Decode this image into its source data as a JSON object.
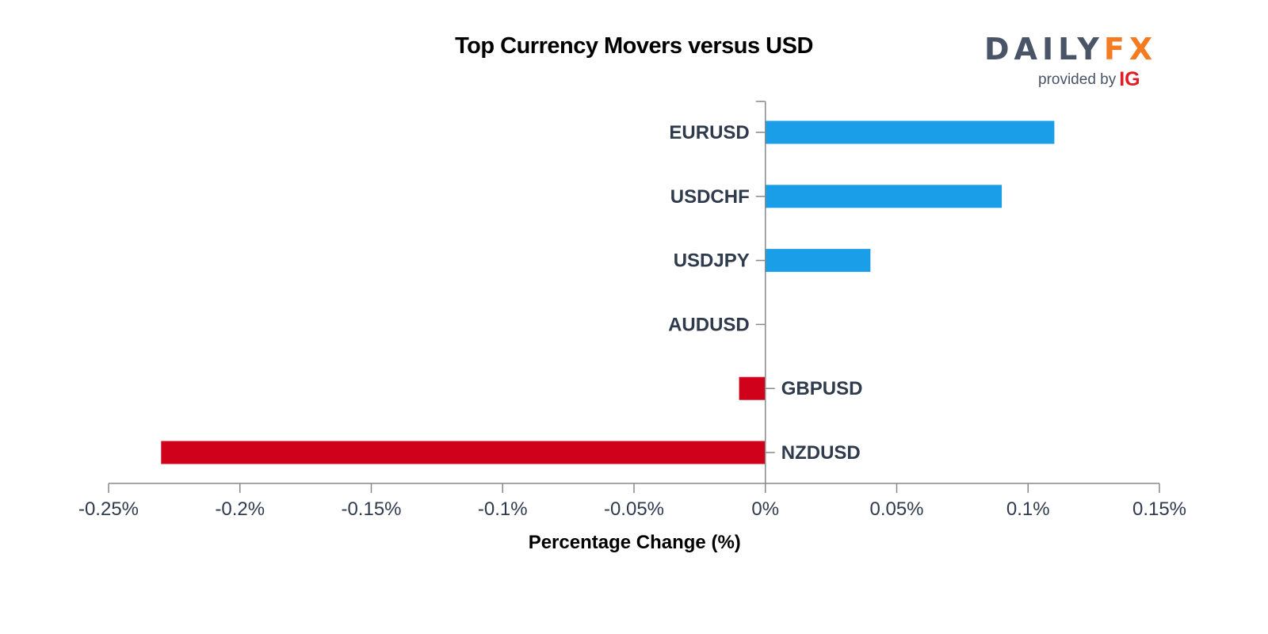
{
  "chart_data": {
    "type": "bar",
    "orientation": "horizontal",
    "title": "Top Currency Movers versus USD",
    "xlabel": "Percentage Change (%)",
    "ylabel": "",
    "categories": [
      "EURUSD",
      "USDCHF",
      "USDJPY",
      "AUDUSD",
      "GBPUSD",
      "NZDUSD"
    ],
    "values": [
      0.11,
      0.09,
      0.04,
      0.0,
      -0.01,
      -0.23
    ],
    "xlim": [
      -0.25,
      0.15
    ],
    "xticks": [
      -0.25,
      -0.2,
      -0.15,
      -0.1,
      -0.05,
      0,
      0.05,
      0.1,
      0.15
    ],
    "xtick_labels": [
      "-0.25%",
      "-0.2%",
      "-0.15%",
      "-0.1%",
      "-0.05%",
      "0%",
      "0.05%",
      "0.1%",
      "0.15%"
    ],
    "grid": false,
    "legend": "none",
    "colors": {
      "positive": "#1b9ee8",
      "negative": "#d0021b",
      "axis": "#888888",
      "label": "#2f3a4c"
    }
  },
  "logo": {
    "word_daily": "DAILY",
    "word_fx": "FX",
    "provided_by": "provided by",
    "ig": "IG"
  }
}
